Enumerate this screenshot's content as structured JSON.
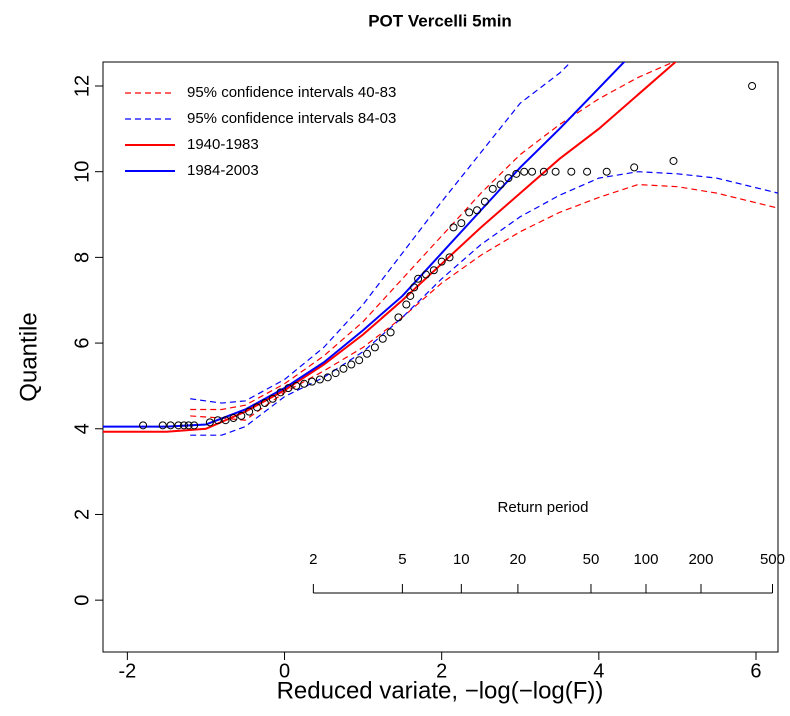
{
  "chart_data": {
    "type": "line",
    "title": "POT Vercelli 5min",
    "xlabel": "Reduced variate,  −log(−log(F))",
    "ylabel": "Quantile",
    "xlim": [
      -2.31,
      6.28
    ],
    "ylim": [
      -1.21,
      12.56
    ],
    "xticks": [
      -2,
      0,
      2,
      4,
      6
    ],
    "yticks": [
      0,
      2,
      4,
      6,
      8,
      10,
      12
    ],
    "legend": "top-left",
    "series": [
      {
        "name": "95% confidence intervals 40-83",
        "color": "#ff0000",
        "linestyle": "dashed",
        "x": [
          -1.2,
          -0.8,
          -0.5,
          0,
          0.5,
          1,
          1.5,
          2,
          2.5,
          3,
          3.5,
          4,
          4.5,
          5,
          5.5,
          6.28
        ],
        "upper": [
          4.45,
          4.45,
          4.55,
          5.05,
          5.7,
          6.5,
          7.5,
          8.5,
          9.5,
          10.4,
          11.1,
          11.7,
          12.2,
          12.6,
          13.0,
          13.6
        ],
        "lower": [
          4.3,
          4.25,
          4.2,
          4.85,
          5.35,
          5.9,
          6.6,
          7.4,
          8.05,
          8.6,
          9.05,
          9.4,
          9.7,
          9.65,
          9.5,
          9.15
        ]
      },
      {
        "name": "95% confidence intervals 84-03",
        "color": "#0000ff",
        "linestyle": "dashed",
        "x": [
          -1.2,
          -0.8,
          -0.5,
          0,
          0.5,
          1,
          1.5,
          2,
          2.5,
          3,
          3.5,
          4,
          4.5,
          5,
          5.5,
          6.28
        ],
        "upper": [
          4.7,
          4.6,
          4.65,
          5.15,
          5.9,
          6.9,
          8.1,
          9.3,
          10.45,
          11.6,
          12.3,
          13.2,
          14.0,
          14.8,
          15.5,
          16.5
        ],
        "lower": [
          3.85,
          3.85,
          4.05,
          4.75,
          5.2,
          5.8,
          6.6,
          7.5,
          8.3,
          8.95,
          9.45,
          9.85,
          10.0,
          9.95,
          9.85,
          9.5
        ]
      },
      {
        "name": "1940-1983",
        "color": "#ff0000",
        "linestyle": "solid",
        "x": [
          -2.31,
          -1.5,
          -1,
          -0.5,
          0,
          0.5,
          1,
          1.5,
          2,
          2.5,
          3,
          3.5,
          4,
          4.5,
          5
        ],
        "values": [
          3.93,
          3.93,
          4.0,
          4.4,
          4.9,
          5.5,
          6.2,
          7.0,
          7.85,
          8.7,
          9.5,
          10.3,
          11.0,
          11.8,
          12.6
        ]
      },
      {
        "name": "1984-2003",
        "color": "#0000ff",
        "linestyle": "solid",
        "x": [
          -2.31,
          -1.5,
          -1,
          -0.5,
          0,
          0.5,
          1,
          1.5,
          2,
          2.5,
          3,
          3.5,
          4,
          4.5
        ],
        "values": [
          4.05,
          4.05,
          4.1,
          4.45,
          4.95,
          5.55,
          6.3,
          7.1,
          8.1,
          9.1,
          10.1,
          11.0,
          11.95,
          12.9
        ]
      }
    ],
    "points": {
      "x": [
        -1.8,
        -1.55,
        -1.45,
        -1.35,
        -1.28,
        -1.22,
        -1.15,
        -0.95,
        -0.85,
        -0.75,
        -0.65,
        -0.55,
        -0.45,
        -0.35,
        -0.25,
        -0.15,
        -0.05,
        0.05,
        0.15,
        0.25,
        0.35,
        0.45,
        0.55,
        0.65,
        0.75,
        0.85,
        0.95,
        1.05,
        1.15,
        1.25,
        1.35,
        1.45,
        1.55,
        1.6,
        1.65,
        1.7,
        1.8,
        1.9,
        2.0,
        2.1,
        2.15,
        2.25,
        2.35,
        2.45,
        2.55,
        2.65,
        2.75,
        2.85,
        2.95,
        3.05,
        3.15,
        3.3,
        3.45,
        3.65,
        3.85,
        4.1,
        4.45,
        4.95,
        5.95
      ],
      "y": [
        4.08,
        4.08,
        4.08,
        4.08,
        4.08,
        4.08,
        4.08,
        4.15,
        4.2,
        4.2,
        4.25,
        4.3,
        4.4,
        4.5,
        4.6,
        4.7,
        4.85,
        4.95,
        5.0,
        5.05,
        5.1,
        5.15,
        5.2,
        5.3,
        5.4,
        5.5,
        5.6,
        5.75,
        5.9,
        6.1,
        6.25,
        6.6,
        6.9,
        7.1,
        7.3,
        7.5,
        7.6,
        7.7,
        7.9,
        8.0,
        8.7,
        8.8,
        9.05,
        9.1,
        9.3,
        9.6,
        9.7,
        9.85,
        9.95,
        10.0,
        10.0,
        10.0,
        10.0,
        10.0,
        10.0,
        10.0,
        10.1,
        10.25,
        12.0
      ]
    },
    "return_period": {
      "label": "Return period",
      "ticks": [
        {
          "value": 0.367,
          "label": "2"
        },
        {
          "value": 1.5,
          "label": "5"
        },
        {
          "value": 2.25,
          "label": "10"
        },
        {
          "value": 2.97,
          "label": "20"
        },
        {
          "value": 3.9,
          "label": "50"
        },
        {
          "value": 4.6,
          "label": "100"
        },
        {
          "value": 5.3,
          "label": "200"
        },
        {
          "value": 6.21,
          "label": "500"
        }
      ]
    }
  }
}
